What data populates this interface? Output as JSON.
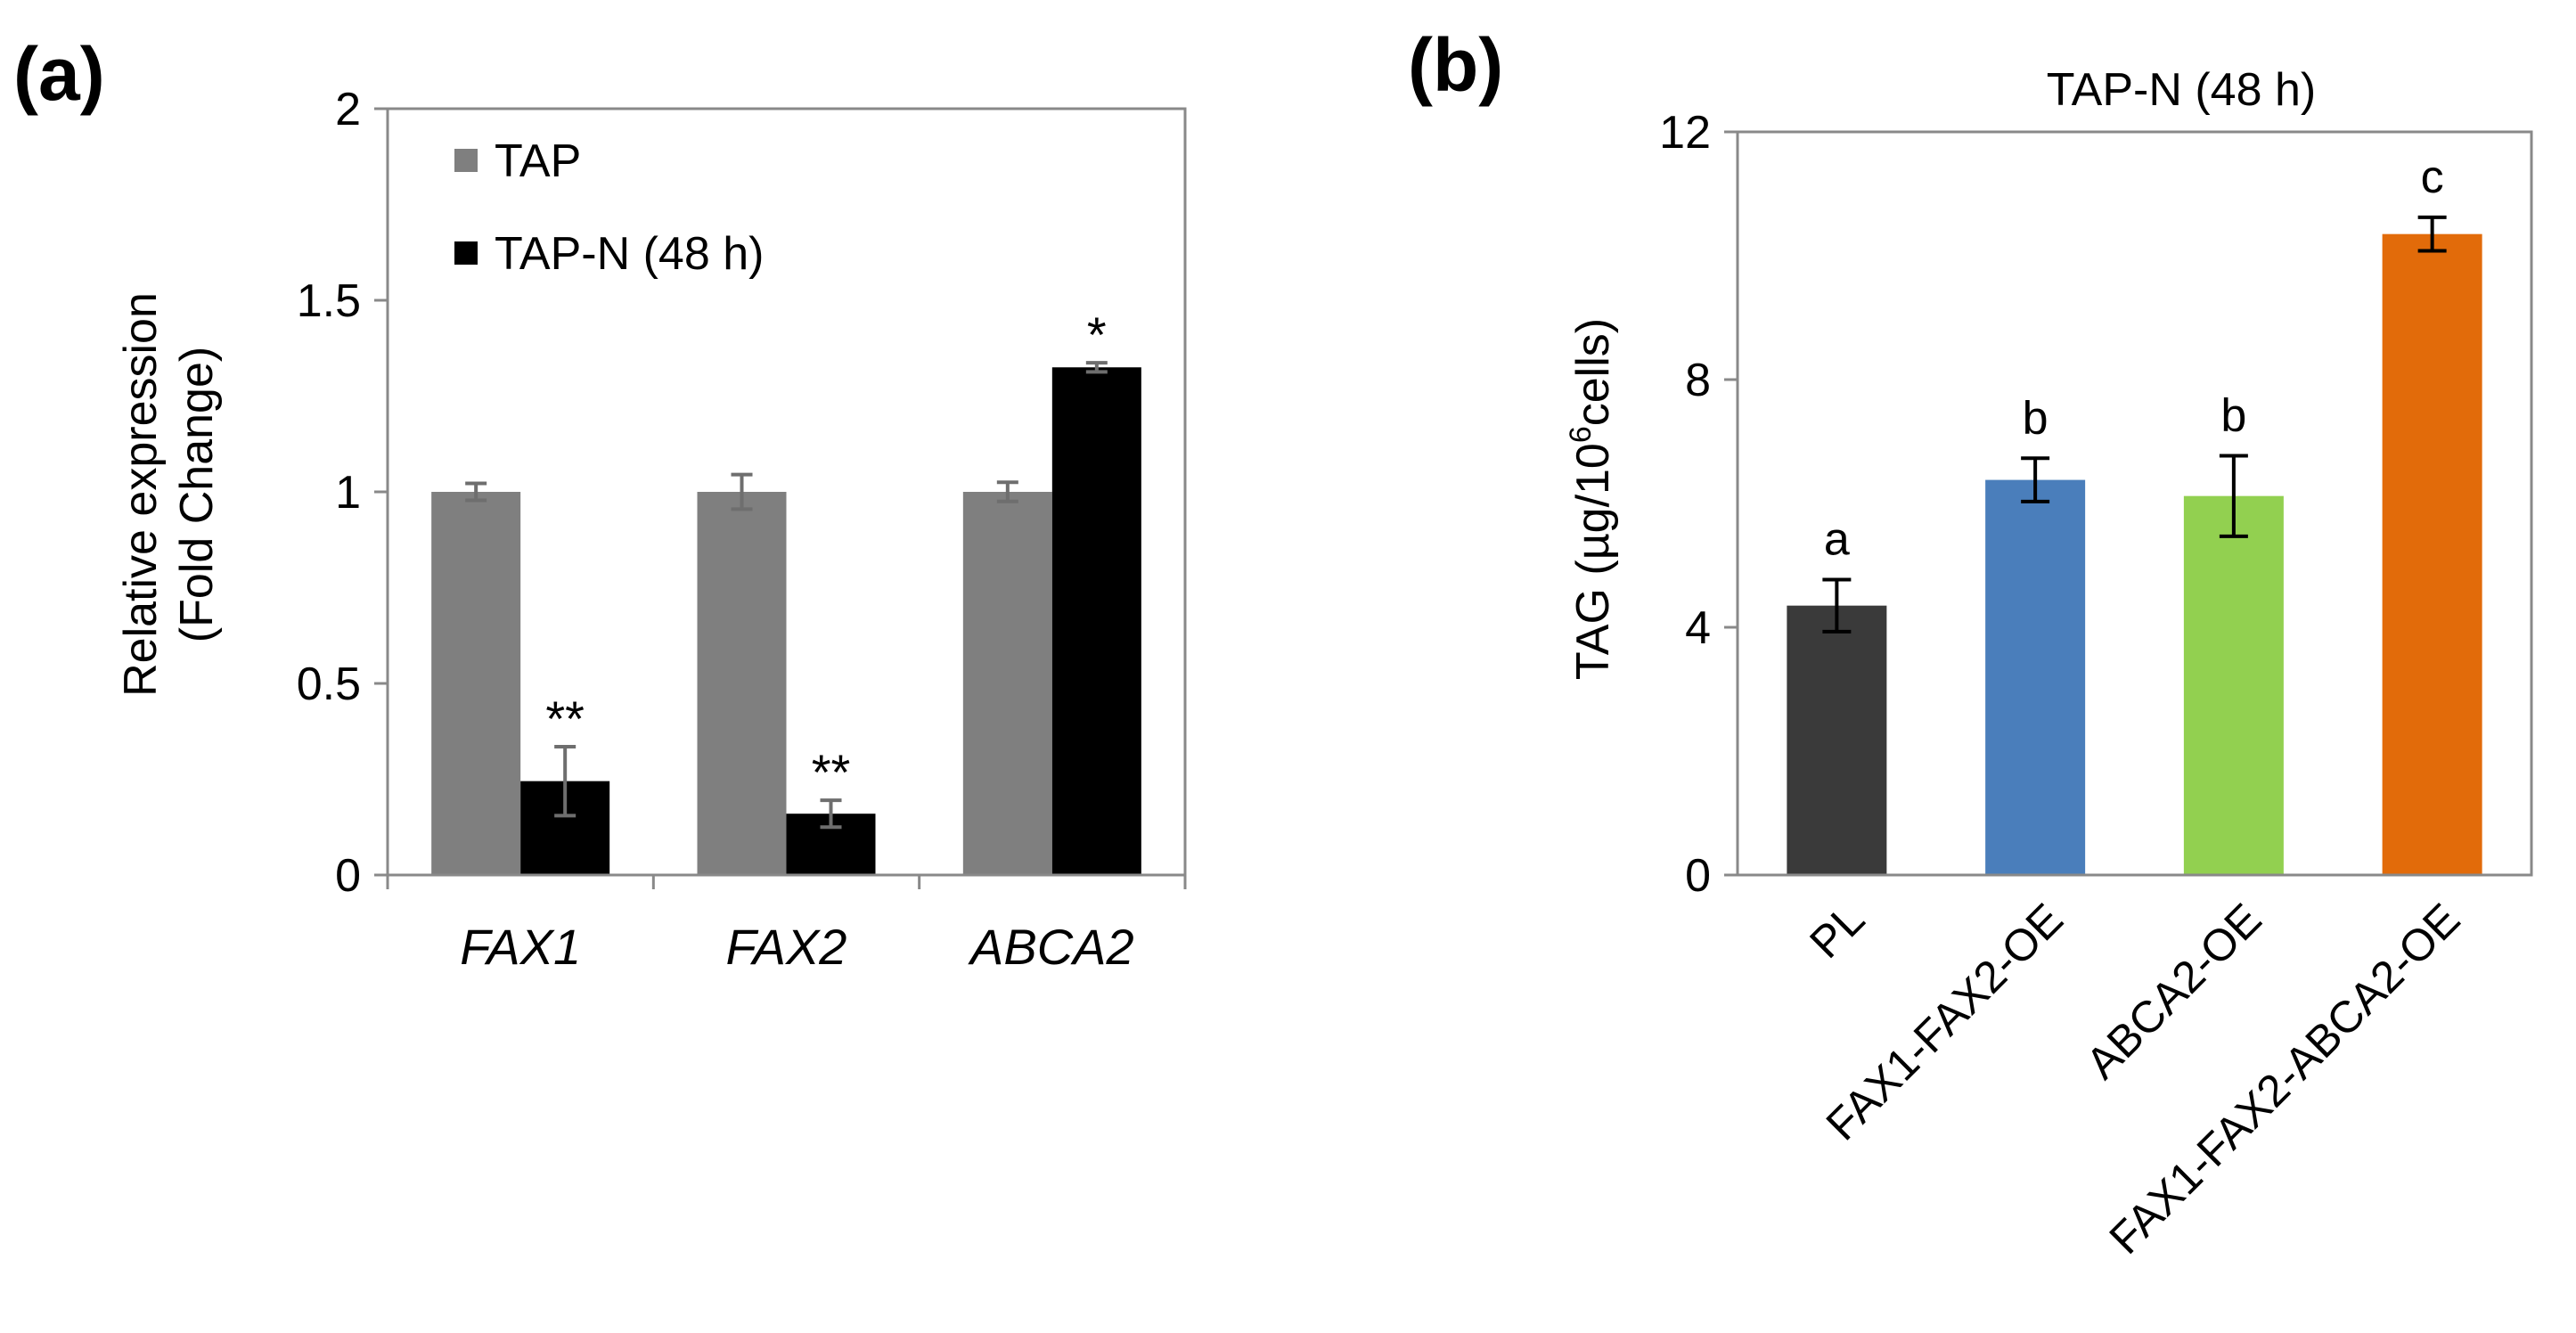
{
  "chart_data": [
    {
      "type": "bar",
      "panel_label": "(a)",
      "title": "",
      "categories": [
        "FAX1",
        "FAX2",
        "ABCA2"
      ],
      "series": [
        {
          "name": "TAP",
          "color": "#7f7f7f",
          "values": [
            1.0,
            1.0,
            1.0
          ],
          "errors": [
            0.022,
            0.045,
            0.025
          ]
        },
        {
          "name": "TAP-N (48 h)",
          "color": "#000000",
          "values": [
            0.245,
            0.16,
            1.325
          ],
          "errors": [
            0.09,
            0.035,
            0.012
          ]
        }
      ],
      "annotations": [
        {
          "category": "FAX1",
          "series": "TAP-N (48 h)",
          "text": "**"
        },
        {
          "category": "FAX2",
          "series": "TAP-N (48 h)",
          "text": "**"
        },
        {
          "category": "ABCA2",
          "series": "TAP-N (48 h)",
          "text": "*"
        }
      ],
      "yticks": [
        0,
        0.5,
        1,
        1.5,
        2
      ],
      "ytick_labels": [
        "0",
        "0.5",
        "1",
        "1.5",
        "2"
      ],
      "ylabel_line1": "Relative expression",
      "ylabel_line2": "(Fold Change)",
      "xlabel": "",
      "ylim": [
        0,
        2
      ],
      "legend_position": "top-left",
      "grid": false
    },
    {
      "type": "bar",
      "panel_label": "(b)",
      "title": "TAP-N (48 h)",
      "categories": [
        "PL",
        "FAX1-FAX2-OE",
        "ABCA2-OE",
        "FAX1-FAX2-ABCA2-OE"
      ],
      "series": [
        {
          "name": "TAG",
          "values": [
            4.35,
            6.38,
            6.12,
            10.35
          ],
          "errors": [
            0.42,
            0.35,
            0.65,
            0.27
          ]
        }
      ],
      "bar_colors": [
        "#3a3a3a",
        "#4a7ebb",
        "#92d050",
        "#e26b0a"
      ],
      "annotations": [
        "a",
        "b",
        "b",
        "c"
      ],
      "yticks": [
        0,
        4,
        8,
        12
      ],
      "ytick_labels": [
        "0",
        "4",
        "8",
        "12"
      ],
      "ylabel_prefix": "TAG (µg/10",
      "ylabel_sup": "6",
      "ylabel_suffix": "cells)",
      "xlabel": "",
      "ylim": [
        0,
        12
      ],
      "grid": false
    }
  ]
}
